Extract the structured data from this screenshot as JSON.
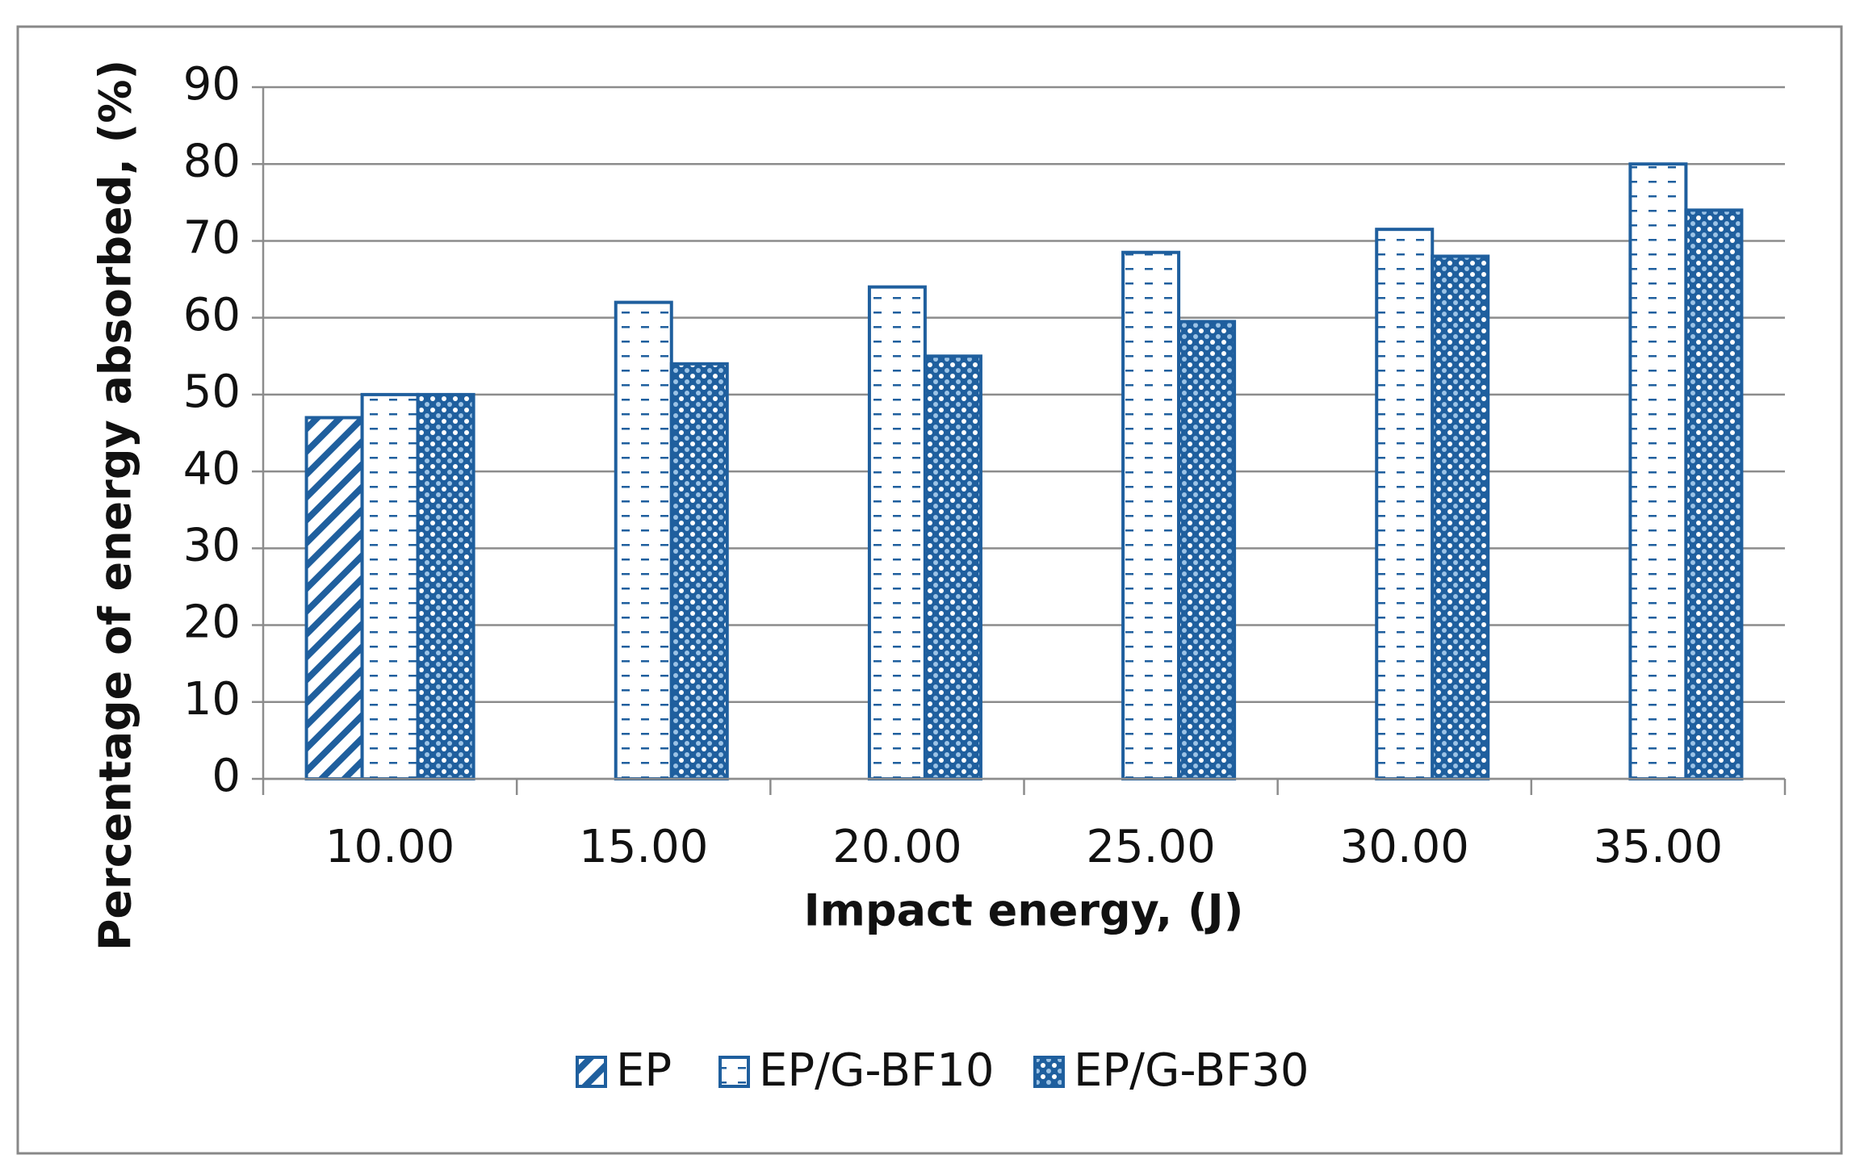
{
  "chart_data": {
    "type": "bar",
    "x_label": "Impact energy, (J)",
    "y_label": "Percentage of energy absorbed, (%)",
    "categories": [
      "10.00",
      "15.00",
      "20.00",
      "25.00",
      "30.00",
      "35.00"
    ],
    "series": [
      {
        "name": "EP",
        "color": "#1f5f9e",
        "values": [
          47,
          null,
          null,
          null,
          null,
          null
        ]
      },
      {
        "name": "EP/G-BF10",
        "color": "#1f5f9e",
        "values": [
          50,
          62,
          64,
          68.5,
          71.5,
          80
        ]
      },
      {
        "name": "EP/G-BF30",
        "color": "#1f5f9e",
        "values": [
          50,
          54,
          55,
          59.5,
          68,
          74
        ]
      }
    ],
    "ylim": [
      0,
      90
    ],
    "yticks": [
      0,
      10,
      20,
      30,
      40,
      50,
      60,
      70,
      80,
      90
    ],
    "grid": true,
    "legend": "bottom"
  }
}
